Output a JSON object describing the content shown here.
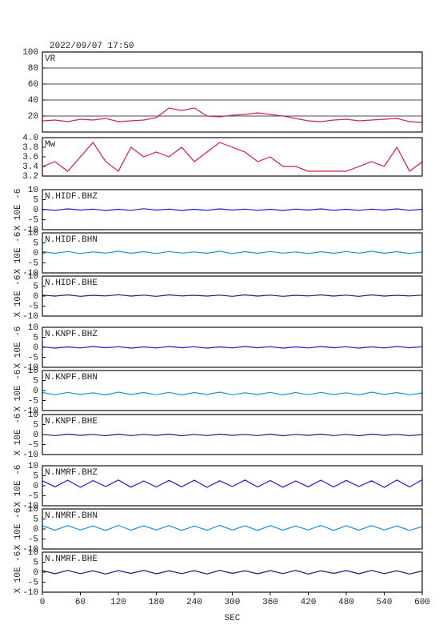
{
  "chart_data": [
    {
      "type": "line",
      "title": "2022/09/07 17:50",
      "grid": true,
      "x": [
        0,
        20,
        40,
        60,
        80,
        100,
        120,
        140,
        160,
        180,
        200,
        220,
        240,
        260,
        280,
        300,
        320,
        340,
        360,
        380,
        400,
        420,
        440,
        460,
        480,
        500,
        520,
        540,
        560,
        580,
        600
      ],
      "xlim": [
        0,
        600
      ],
      "ylim": [
        0,
        100
      ],
      "yticks": [
        20,
        40,
        60,
        80,
        100
      ],
      "series": [
        {
          "name": "VR",
          "color": "#d0205a",
          "values": [
            14,
            15,
            13,
            16,
            15,
            17,
            13,
            14,
            15,
            18,
            30,
            27,
            30,
            20,
            19,
            21,
            22,
            24,
            22,
            20,
            17,
            14,
            13,
            15,
            16,
            14,
            15,
            16,
            17,
            13,
            12
          ]
        }
      ]
    },
    {
      "type": "line",
      "grid": false,
      "x": [
        0,
        20,
        40,
        60,
        80,
        100,
        120,
        140,
        160,
        180,
        200,
        220,
        240,
        260,
        280,
        300,
        320,
        340,
        360,
        380,
        400,
        420,
        440,
        460,
        480,
        500,
        520,
        540,
        560,
        580,
        600
      ],
      "xlim": [
        0,
        600
      ],
      "ylim": [
        3.2,
        4.0
      ],
      "yticks": [
        3.2,
        3.4,
        3.6,
        3.8,
        {
          "value": 4,
          "label": "4.0"
        }
      ],
      "series": [
        {
          "name": "Mw",
          "color": "#e01838",
          "values": [
            3.4,
            3.5,
            3.3,
            3.6,
            3.9,
            3.5,
            3.3,
            3.8,
            3.6,
            3.7,
            3.6,
            3.8,
            3.5,
            3.7,
            3.9,
            3.8,
            3.7,
            3.5,
            3.6,
            3.4,
            3.4,
            3.3,
            3.3,
            3.3,
            3.3,
            3.4,
            3.5,
            3.4,
            3.8,
            3.3,
            3.5
          ]
        }
      ]
    },
    {
      "type": "line",
      "ylabel": "X 10E -6",
      "x": [
        0,
        20,
        40,
        60,
        80,
        100,
        120,
        140,
        160,
        180,
        200,
        220,
        240,
        260,
        280,
        300,
        320,
        340,
        360,
        380,
        400,
        420,
        440,
        460,
        480,
        500,
        520,
        540,
        560,
        580,
        600
      ],
      "xlim": [
        0,
        600
      ],
      "ylim": [
        -10,
        10
      ],
      "yticks": [
        -10,
        -5,
        0,
        5,
        10
      ],
      "series": [
        {
          "name": "N.HIDF.BHZ",
          "color": "#1a1acc",
          "values": [
            0.2,
            -0.3,
            0.4,
            -0.2,
            0.3,
            -0.4,
            0.2,
            -0.3,
            0.5,
            -0.2,
            0.3,
            -0.4,
            0.2,
            -0.3,
            0.4,
            -0.2,
            0.3,
            -0.3,
            0.2,
            -0.4,
            0.3,
            -0.2,
            0.4,
            -0.3,
            0.2,
            -0.3,
            0.3,
            -0.2,
            0.4,
            -0.3,
            0.2
          ]
        }
      ]
    },
    {
      "type": "line",
      "ylabel": "X 10E -6",
      "x": [
        0,
        20,
        40,
        60,
        80,
        100,
        120,
        140,
        160,
        180,
        200,
        220,
        240,
        260,
        280,
        300,
        320,
        340,
        360,
        380,
        400,
        420,
        440,
        460,
        480,
        500,
        520,
        540,
        560,
        580,
        600
      ],
      "xlim": [
        0,
        600
      ],
      "ylim": [
        -10,
        10
      ],
      "yticks": [
        -10,
        -5,
        0,
        5,
        10
      ],
      "series": [
        {
          "name": "N.HIDF.BHN",
          "color": "#1e90e0",
          "values": [
            0.6,
            -0.2,
            0.7,
            -0.3,
            0.5,
            -0.1,
            0.8,
            -0.2,
            0.6,
            -0.3,
            0.7,
            -0.1,
            0.5,
            -0.2,
            0.8,
            -0.3,
            0.6,
            -0.2,
            0.7,
            -0.1,
            0.5,
            -0.3,
            0.6,
            -0.2,
            0.7,
            -0.1,
            0.8,
            -0.2,
            0.6,
            -0.3,
            0.5
          ]
        }
      ]
    },
    {
      "type": "line",
      "ylabel": "X 10E -6",
      "x": [
        0,
        20,
        40,
        60,
        80,
        100,
        120,
        140,
        160,
        180,
        200,
        220,
        240,
        260,
        280,
        300,
        320,
        340,
        360,
        380,
        400,
        420,
        440,
        460,
        480,
        500,
        520,
        540,
        560,
        580,
        600
      ],
      "xlim": [
        0,
        600
      ],
      "ylim": [
        -10,
        10
      ],
      "yticks": [
        -10,
        -5,
        0,
        5,
        10
      ],
      "series": [
        {
          "name": "N.HIDF.BHE",
          "color": "#1a1a80",
          "values": [
            0.5,
            0.0,
            0.6,
            -0.1,
            0.4,
            0.1,
            0.7,
            0.0,
            0.5,
            -0.1,
            0.6,
            0.1,
            0.4,
            0.0,
            0.5,
            -0.1,
            0.6,
            0.0,
            0.5,
            -0.1,
            0.4,
            0.1,
            0.6,
            0.0,
            0.5,
            -0.1,
            0.6,
            0.0,
            0.4,
            0.1,
            0.5
          ]
        }
      ]
    },
    {
      "type": "line",
      "ylabel": "X 10E -6",
      "x": [
        0,
        20,
        40,
        60,
        80,
        100,
        120,
        140,
        160,
        180,
        200,
        220,
        240,
        260,
        280,
        300,
        320,
        340,
        360,
        380,
        400,
        420,
        440,
        460,
        480,
        500,
        520,
        540,
        560,
        580,
        600
      ],
      "xlim": [
        0,
        600
      ],
      "ylim": [
        -10,
        10
      ],
      "yticks": [
        -10,
        -5,
        0,
        5,
        10
      ],
      "series": [
        {
          "name": "N.KNPF.BHZ",
          "color": "#1a1acc",
          "values": [
            0.3,
            -0.4,
            0.2,
            -0.3,
            0.4,
            -0.2,
            0.3,
            -0.4,
            0.2,
            -0.3,
            0.4,
            -0.2,
            0.3,
            -0.4,
            0.2,
            -0.3,
            0.4,
            -0.2,
            0.3,
            -0.4,
            0.2,
            -0.3,
            0.4,
            -0.2,
            0.3,
            -0.4,
            0.2,
            -0.3,
            0.4,
            -0.2,
            0.3
          ]
        }
      ]
    },
    {
      "type": "line",
      "ylabel": "X 10E -6",
      "x": [
        0,
        20,
        40,
        60,
        80,
        100,
        120,
        140,
        160,
        180,
        200,
        220,
        240,
        260,
        280,
        300,
        320,
        340,
        360,
        380,
        400,
        420,
        440,
        460,
        480,
        500,
        520,
        540,
        560,
        580,
        600
      ],
      "xlim": [
        0,
        600
      ],
      "ylim": [
        -10,
        10
      ],
      "yticks": [
        -10,
        -5,
        0,
        5,
        10
      ],
      "series": [
        {
          "name": "N.KNPF.BHN",
          "color": "#1e90e0",
          "values": [
            -1.0,
            -2.1,
            -0.9,
            -2.0,
            -1.1,
            -2.2,
            -0.8,
            -2.0,
            -1.0,
            -2.1,
            -0.9,
            -2.2,
            -1.0,
            -2.0,
            -0.8,
            -2.1,
            -1.1,
            -2.0,
            -0.9,
            -2.2,
            -1.0,
            -2.1,
            -0.9,
            -2.0,
            -1.1,
            -2.2,
            -0.8,
            -2.0,
            -1.0,
            -2.1,
            -1.2
          ]
        }
      ]
    },
    {
      "type": "line",
      "ylabel": "X 10E -6",
      "x": [
        0,
        20,
        40,
        60,
        80,
        100,
        120,
        140,
        160,
        180,
        200,
        220,
        240,
        260,
        280,
        300,
        320,
        340,
        360,
        380,
        400,
        420,
        440,
        460,
        480,
        500,
        520,
        540,
        560,
        580,
        600
      ],
      "xlim": [
        0,
        600
      ],
      "ylim": [
        -10,
        10
      ],
      "yticks": [
        -10,
        -5,
        0,
        5,
        10
      ],
      "series": [
        {
          "name": "N.KNPF.BHE",
          "color": "#1a1a80",
          "values": [
            0.1,
            -0.5,
            0.2,
            -0.4,
            0.1,
            -0.6,
            0.2,
            -0.5,
            0.1,
            -0.4,
            0.2,
            -0.6,
            0.1,
            -0.5,
            0.2,
            -0.4,
            0.1,
            -0.5,
            0.2,
            -0.6,
            0.1,
            -0.4,
            0.2,
            -0.5,
            0.1,
            -0.6,
            0.2,
            -0.4,
            0.1,
            -0.5,
            0.0
          ]
        }
      ]
    },
    {
      "type": "line",
      "ylabel": "X 10E -6",
      "x": [
        0,
        20,
        40,
        60,
        80,
        100,
        120,
        140,
        160,
        180,
        200,
        220,
        240,
        260,
        280,
        300,
        320,
        340,
        360,
        380,
        400,
        420,
        440,
        460,
        480,
        500,
        520,
        540,
        560,
        580,
        600
      ],
      "xlim": [
        0,
        600
      ],
      "ylim": [
        -10,
        10
      ],
      "yticks": [
        -10,
        -5,
        0,
        5,
        10
      ],
      "series": [
        {
          "name": "N.NMRF.BHZ",
          "color": "#1a1acc",
          "values": [
            2.5,
            -0.5,
            2.8,
            -0.8,
            2.6,
            -0.4,
            2.9,
            -0.7,
            2.4,
            -0.6,
            2.7,
            -0.5,
            2.8,
            -0.8,
            2.5,
            -0.4,
            2.9,
            -0.6,
            2.6,
            -0.7,
            2.4,
            -0.5,
            2.8,
            -0.6,
            2.7,
            -0.4,
            2.5,
            -0.8,
            2.9,
            -0.6,
            3.0
          ]
        }
      ]
    },
    {
      "type": "line",
      "ylabel": "X 10E -6",
      "x": [
        0,
        20,
        40,
        60,
        80,
        100,
        120,
        140,
        160,
        180,
        200,
        220,
        240,
        260,
        280,
        300,
        320,
        340,
        360,
        380,
        400,
        420,
        440,
        460,
        480,
        500,
        520,
        540,
        560,
        580,
        600
      ],
      "xlim": [
        0,
        600
      ],
      "ylim": [
        -10,
        10
      ],
      "yticks": [
        -10,
        -5,
        0,
        5,
        10
      ],
      "series": [
        {
          "name": "N.NMRF.BHN",
          "color": "#1e90e0",
          "values": [
            1.6,
            -0.6,
            1.7,
            -0.5,
            1.5,
            -0.7,
            1.8,
            -0.6,
            1.6,
            -0.5,
            1.7,
            -0.7,
            1.5,
            -0.6,
            1.8,
            -0.5,
            1.6,
            -0.7,
            1.7,
            -0.6,
            1.5,
            -0.5,
            1.8,
            -0.7,
            1.6,
            -0.6,
            1.7,
            -0.5,
            1.5,
            -0.7,
            1.2
          ]
        }
      ]
    },
    {
      "type": "line",
      "ylabel": "X 10E -6",
      "xlabel": "SEC",
      "x": [
        0,
        20,
        40,
        60,
        80,
        100,
        120,
        140,
        160,
        180,
        200,
        220,
        240,
        260,
        280,
        300,
        320,
        340,
        360,
        380,
        400,
        420,
        440,
        460,
        480,
        500,
        520,
        540,
        560,
        580,
        600
      ],
      "xlim": [
        0,
        600
      ],
      "xticks": [
        0,
        60,
        120,
        180,
        240,
        300,
        360,
        420,
        480,
        540,
        600
      ],
      "ylim": [
        -10,
        10
      ],
      "yticks": [
        -10,
        -5,
        0,
        5,
        10
      ],
      "series": [
        {
          "name": "N.NMRF.BHE",
          "color": "#1a1a80",
          "values": [
            0.8,
            -0.8,
            0.9,
            -0.7,
            0.7,
            -0.9,
            0.8,
            -0.6,
            0.9,
            -0.8,
            0.7,
            -0.7,
            0.8,
            -0.9,
            0.9,
            -0.6,
            0.7,
            -0.8,
            0.8,
            -0.7,
            0.9,
            -0.9,
            0.7,
            -0.6,
            0.8,
            -0.8,
            0.9,
            -0.7,
            0.7,
            -0.9,
            0.6
          ]
        }
      ]
    }
  ]
}
